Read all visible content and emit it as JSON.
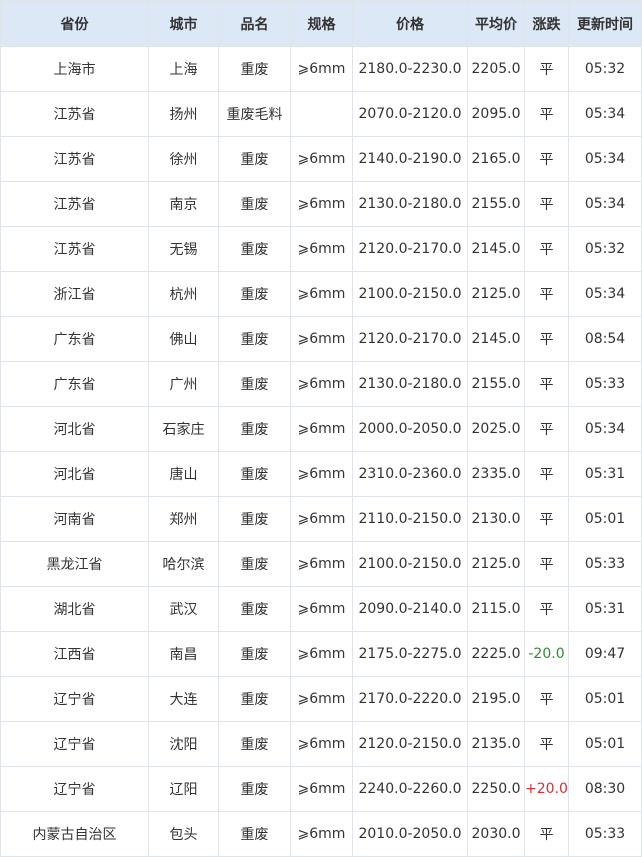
{
  "table": {
    "header": [
      "省份",
      "城市",
      "品名",
      "规格",
      "价格",
      "平均价",
      "涨跌",
      "更新时间"
    ],
    "rows": [
      [
        "上海市",
        "上海",
        "重废",
        "⩾6mm",
        "2180.0-2230.0",
        "2205.0",
        "平",
        "05:32"
      ],
      [
        "江苏省",
        "扬州",
        "重废毛料",
        null,
        "2070.0-2120.0",
        "2095.0",
        "平",
        "05:34"
      ],
      [
        "江苏省",
        "徐州",
        "重废",
        "⩾6mm",
        "2140.0-2190.0",
        "2165.0",
        "平",
        "05:34"
      ],
      [
        "江苏省",
        "南京",
        "重废",
        "⩾6mm",
        "2130.0-2180.0",
        "2155.0",
        "平",
        "05:34"
      ],
      [
        "江苏省",
        "无锡",
        "重废",
        "⩾6mm",
        "2120.0-2170.0",
        "2145.0",
        "平",
        "05:32"
      ],
      [
        "浙江省",
        "杭州",
        "重废",
        "⩾6mm",
        "2100.0-2150.0",
        "2125.0",
        "平",
        "05:34"
      ],
      [
        "广东省",
        "佛山",
        "重废",
        "⩾6mm",
        "2120.0-2170.0",
        "2145.0",
        "平",
        "08:54"
      ],
      [
        "广东省",
        "广州",
        "重废",
        "⩾6mm",
        "2130.0-2180.0",
        "2155.0",
        "平",
        "05:33"
      ],
      [
        "河北省",
        "石家庄",
        "重废",
        "⩾6mm",
        "2000.0-2050.0",
        "2025.0",
        "平",
        "05:34"
      ],
      [
        "河北省",
        "唐山",
        "重废",
        "⩾6mm",
        "2310.0-2360.0",
        "2335.0",
        "平",
        "05:31"
      ],
      [
        "河南省",
        "郑州",
        "重废",
        "⩾6mm",
        "2110.0-2150.0",
        "2130.0",
        "平",
        "05:01"
      ],
      [
        "黑龙江省",
        "哈尔滨",
        "重废",
        "⩾6mm",
        "2100.0-2150.0",
        "2125.0",
        "平",
        "05:33"
      ],
      [
        "湖北省",
        "武汉",
        "重废",
        "⩾6mm",
        "2090.0-2140.0",
        "2115.0",
        "平",
        "05:31"
      ],
      [
        "江西省",
        "南昌",
        "重废",
        "⩾6mm",
        "2175.0-2275.0",
        "2225.0",
        "-20.0",
        "09:47"
      ],
      [
        "辽宁省",
        "大连",
        "重废",
        "⩾6mm",
        "2170.0-2220.0",
        "2195.0",
        "平",
        "05:01"
      ],
      [
        "辽宁省",
        "沈阳",
        "重废",
        "⩾6mm",
        "2120.0-2150.0",
        "2135.0",
        "平",
        "05:01"
      ],
      [
        "辽宁省",
        "辽阳",
        "重废",
        "⩾6mm",
        "2240.0-2260.0",
        "2250.0",
        "+20.0",
        "08:30"
      ],
      [
        "内蒙古自治区",
        "包头",
        "重废",
        "⩾6mm",
        "2010.0-2050.0",
        "2030.0",
        "平",
        "05:33"
      ]
    ]
  }
}
